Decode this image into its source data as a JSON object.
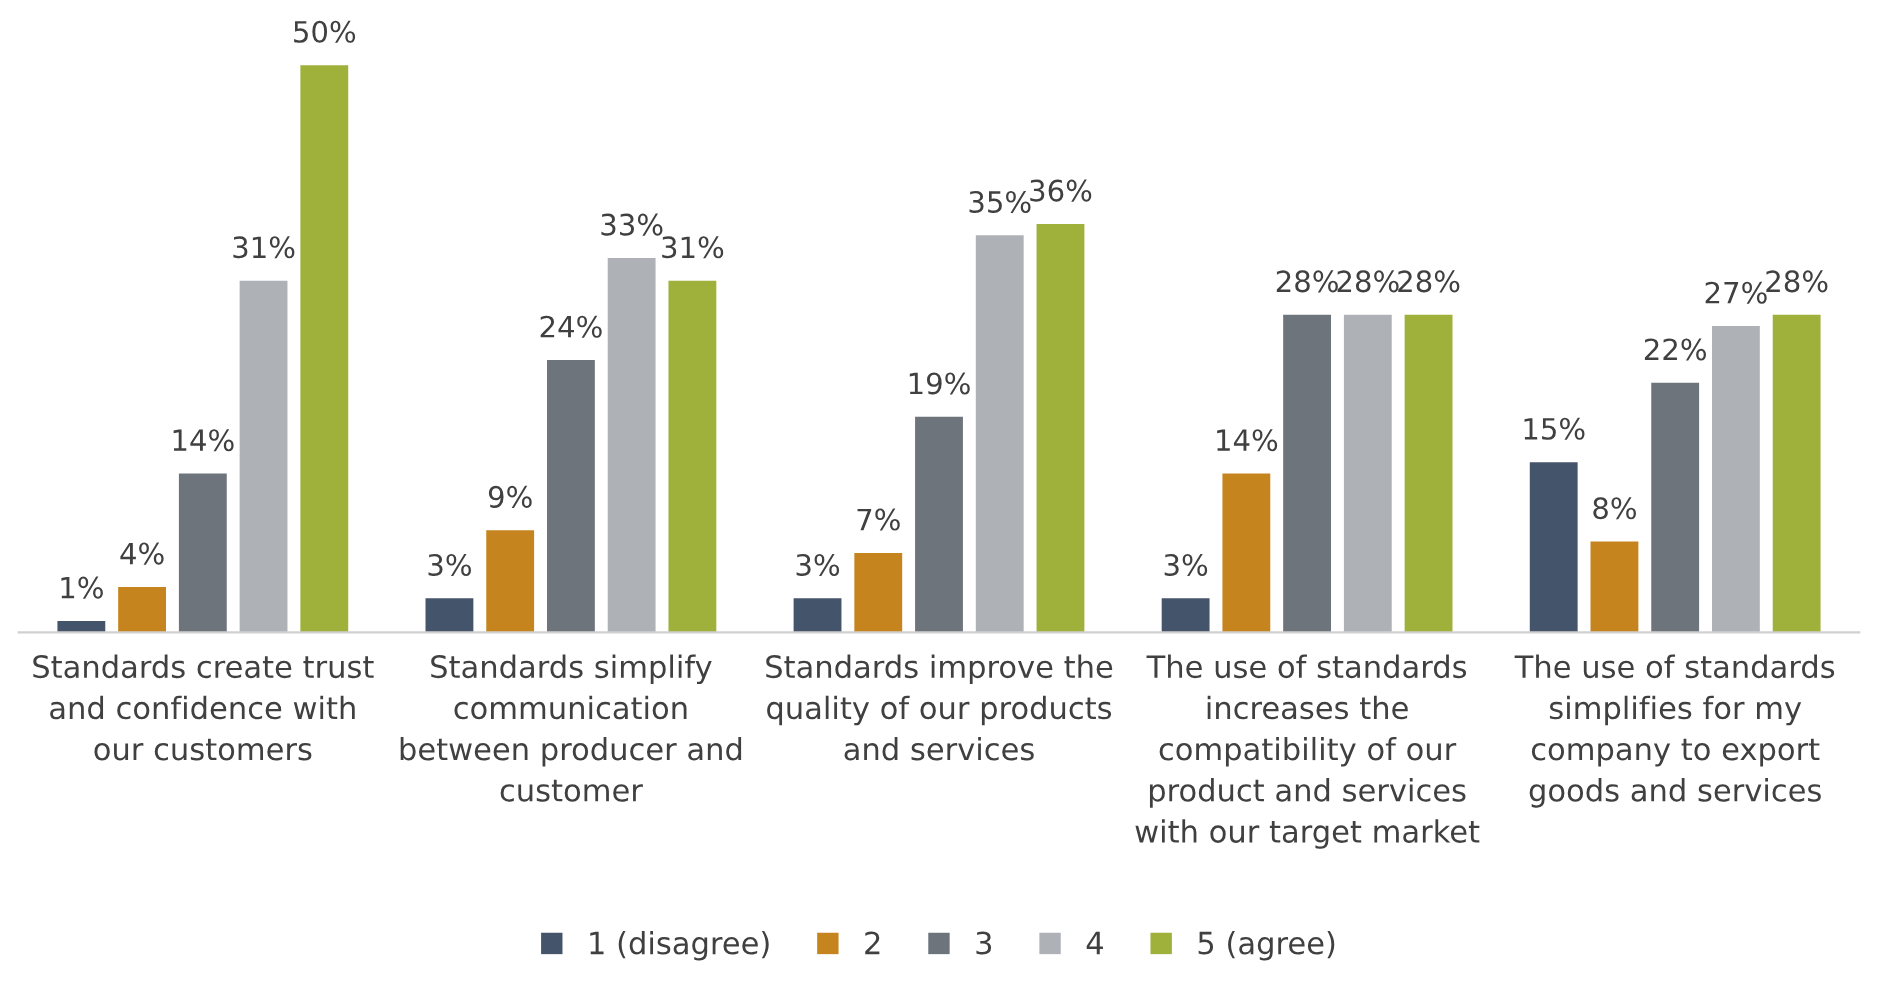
{
  "chart_data": {
    "type": "bar",
    "categories": [
      "Standards create trust\nand confidence with\nour customers",
      "Standards simplify\ncommunication\nbetween producer and\ncustomer",
      "Standards improve the\nquality of our products\nand services",
      "The use of standards\nincreases the\ncompatibility of our\nproduct and services\nwith our target market",
      "The use of standards\nsimplifies for my\ncompany to export\ngoods and services"
    ],
    "series": [
      {
        "name": "1 (disagree)",
        "color": "#44546a",
        "values": [
          1,
          3,
          3,
          3,
          15
        ],
        "value_labels": [
          "1%",
          "3%",
          "3%",
          "3%",
          "15%"
        ]
      },
      {
        "name": "2",
        "color": "#c5841e",
        "values": [
          4,
          9,
          7,
          14,
          8
        ],
        "value_labels": [
          "4%",
          "9%",
          "7%",
          "14%",
          "8%"
        ]
      },
      {
        "name": "3",
        "color": "#6e747c",
        "values": [
          14,
          24,
          19,
          28,
          22
        ],
        "value_labels": [
          "14%",
          "24%",
          "19%",
          "28%",
          "22%"
        ]
      },
      {
        "name": "4",
        "color": "#aeb2b7",
        "values": [
          31,
          33,
          35,
          28,
          27
        ],
        "value_labels": [
          "31%",
          "33%",
          "35%",
          "28%",
          "27%"
        ]
      },
      {
        "name": "5 (agree)",
        "color": "#9fb13a",
        "values": [
          50,
          31,
          36,
          28,
          28
        ],
        "value_labels": [
          "50%",
          "31%",
          "36%",
          "28%",
          "28%"
        ]
      }
    ],
    "legend": "bottom"
  }
}
